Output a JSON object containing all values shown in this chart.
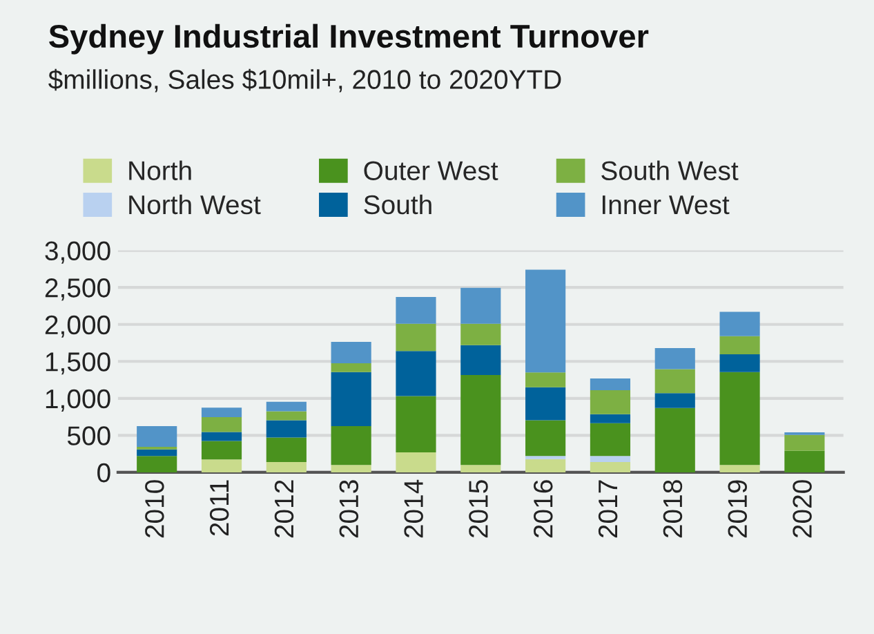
{
  "chart_data": {
    "type": "bar",
    "stacked": true,
    "title": "Sydney Industrial Investment Turnover",
    "subtitle": "$millions, Sales $10mil+, 2010 to 2020YTD",
    "categories": [
      "2010",
      "2011",
      "2012",
      "2013",
      "2014",
      "2015",
      "2016",
      "2017",
      "2018",
      "2019",
      "2020"
    ],
    "series": [
      {
        "name": "North",
        "color": "#c9db8c",
        "values": [
          0,
          175,
          140,
          100,
          270,
          100,
          180,
          140,
          0,
          100,
          0
        ]
      },
      {
        "name": "North West",
        "color": "#b9d1f0",
        "values": [
          0,
          0,
          0,
          0,
          0,
          0,
          40,
          80,
          0,
          0,
          0
        ]
      },
      {
        "name": "Outer West",
        "color": "#4a921e",
        "values": [
          220,
          250,
          330,
          525,
          760,
          1215,
          485,
          445,
          870,
          1255,
          290
        ]
      },
      {
        "name": "South",
        "color": "#00629b",
        "values": [
          90,
          120,
          235,
          730,
          610,
          405,
          445,
          120,
          200,
          240,
          0
        ]
      },
      {
        "name": "South West",
        "color": "#7db043",
        "values": [
          35,
          200,
          120,
          120,
          370,
          290,
          200,
          325,
          325,
          245,
          215
        ]
      },
      {
        "name": "Inner West",
        "color": "#5294c8",
        "values": [
          280,
          130,
          130,
          290,
          360,
          485,
          1390,
          160,
          285,
          330,
          35
        ]
      }
    ],
    "ylim": [
      0,
      3000
    ],
    "yticks": [
      {
        "value": 0,
        "label": "0"
      },
      {
        "value": 500,
        "label": "500"
      },
      {
        "value": 1000,
        "label": "1,000"
      },
      {
        "value": 1500,
        "label": "1,500"
      },
      {
        "value": 2000,
        "label": "2,000"
      },
      {
        "value": 2500,
        "label": "2,500"
      },
      {
        "value": 3000,
        "label": "3,000"
      }
    ],
    "grid": "y",
    "legend": "top"
  }
}
